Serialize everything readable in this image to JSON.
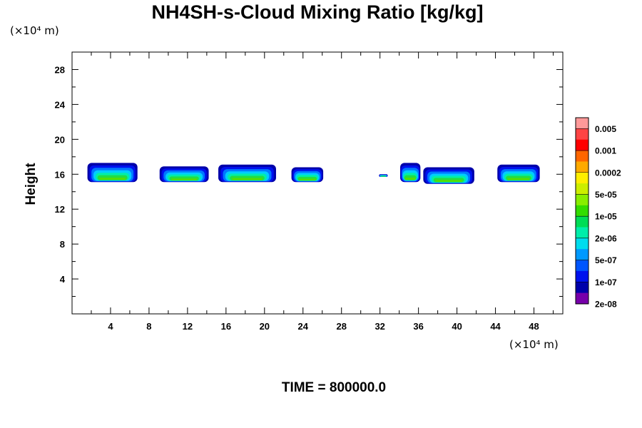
{
  "chart_data": {
    "type": "contour",
    "title": "NH4SH-s-Cloud Mixing Ratio [kg/kg]",
    "ylabel": "Height",
    "x_unit": "(×10⁴ m)",
    "y_unit": "(×10⁴ m)",
    "xlim": [
      0,
      51
    ],
    "ylim": [
      0,
      30
    ],
    "x_ticks": [
      "4",
      "8",
      "12",
      "16",
      "20",
      "24",
      "28",
      "32",
      "36",
      "40",
      "44",
      "48"
    ],
    "x_tick_values": [
      4,
      8,
      12,
      16,
      20,
      24,
      28,
      32,
      36,
      40,
      44,
      48
    ],
    "y_ticks": [
      "4",
      "8",
      "12",
      "16",
      "20",
      "24",
      "28"
    ],
    "y_tick_values": [
      4,
      8,
      12,
      16,
      20,
      24,
      28
    ],
    "time_label": "TIME = 800000.0",
    "colorbar": {
      "labels": [
        "0.005",
        "0.001",
        "0.0002",
        "5e-05",
        "1e-05",
        "2e-06",
        "5e-07",
        "1e-07",
        "2e-08"
      ],
      "colors_top_to_bottom": [
        "#ff9999",
        "#ff4444",
        "#ff0000",
        "#ff6600",
        "#ffaa00",
        "#ffee00",
        "#ccee00",
        "#88ee00",
        "#33dd00",
        "#00dd55",
        "#00eeaa",
        "#00ddee",
        "#0099ff",
        "#0055ff",
        "#0011ee",
        "#0000aa",
        "#7700aa"
      ]
    },
    "clouds": [
      {
        "x": [
          1.6,
          6.8
        ],
        "y": [
          15.1,
          17.3
        ]
      },
      {
        "x": [
          9.1,
          14.2
        ],
        "y": [
          15.1,
          16.9
        ]
      },
      {
        "x": [
          15.2,
          21.2
        ],
        "y": [
          15.1,
          17.1
        ]
      },
      {
        "x": [
          22.8,
          26.1
        ],
        "y": [
          15.1,
          16.8
        ]
      },
      {
        "x": [
          31.9,
          32.8
        ],
        "y": [
          15.7,
          16.0
        ]
      },
      {
        "x": [
          34.1,
          36.2
        ],
        "y": [
          15.1,
          17.3
        ]
      },
      {
        "x": [
          36.5,
          41.8
        ],
        "y": [
          14.9,
          16.8
        ]
      },
      {
        "x": [
          44.2,
          48.6
        ],
        "y": [
          15.1,
          17.1
        ]
      }
    ],
    "shading_colors": [
      "#0000aa",
      "#0011ee",
      "#0077ff",
      "#00ccff",
      "#00eeaa",
      "#22dd44",
      "#55dd00"
    ]
  }
}
